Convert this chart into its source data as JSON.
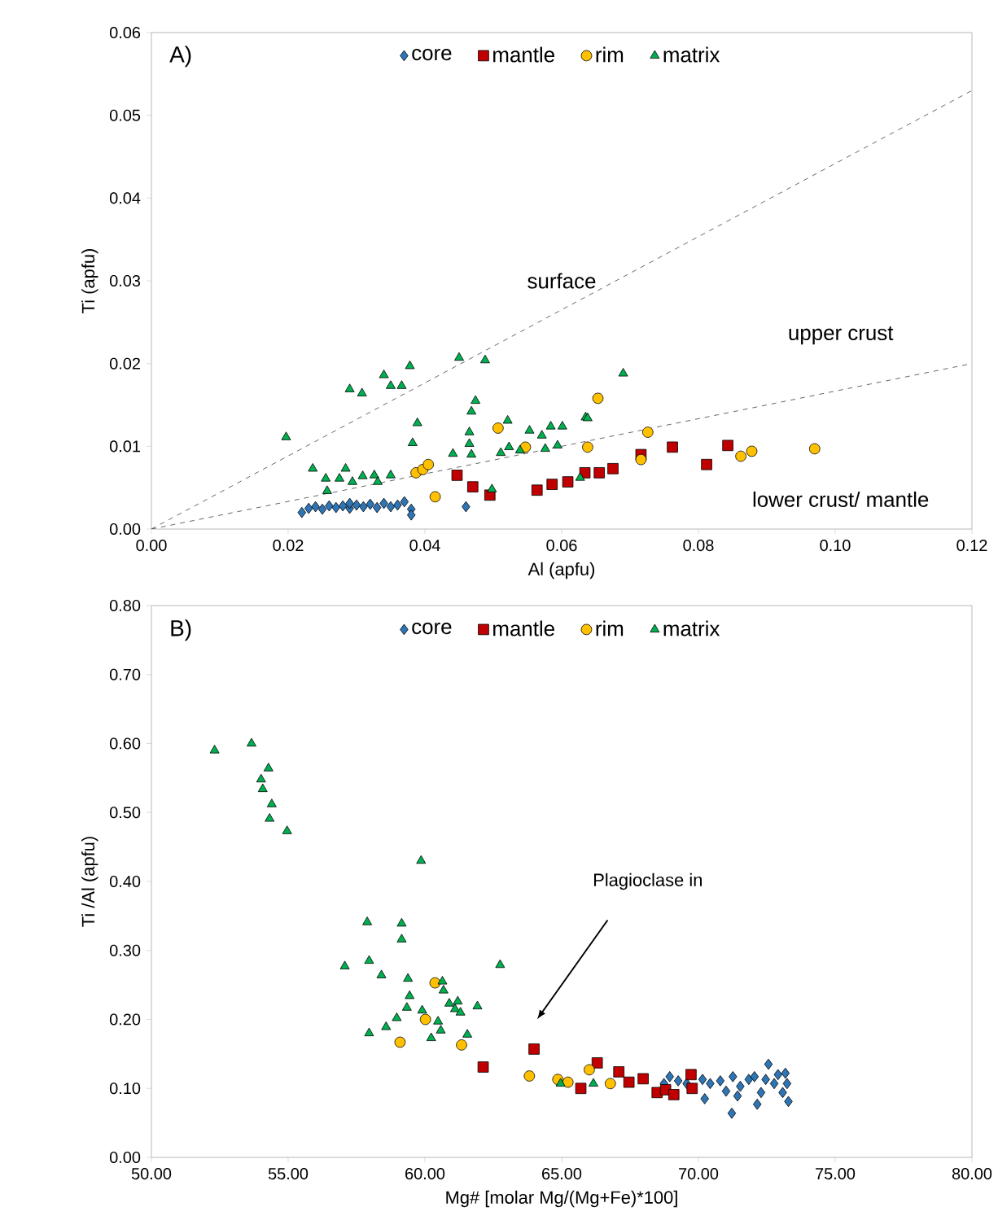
{
  "chart_data": [
    {
      "type": "scatter",
      "title": "A)",
      "xlabel": "Al (apfu)",
      "ylabel": "Ti (apfu)",
      "legend": "top",
      "xlim": [
        0,
        0.12
      ],
      "ylim": [
        0,
        0.06
      ],
      "xticks": [
        {
          "value": 0,
          "label": "0.00"
        },
        {
          "value": 0.02,
          "label": "0.02"
        },
        {
          "value": 0.04,
          "label": "0.04"
        },
        {
          "value": 0.06,
          "label": "0.06"
        },
        {
          "value": 0.08,
          "label": "0.08"
        },
        {
          "value": 0.1,
          "label": "0.10"
        },
        {
          "value": 0.12,
          "label": "0.12"
        }
      ],
      "yticks": [
        {
          "value": 0,
          "label": "0.00"
        },
        {
          "value": 0.01,
          "label": "0.01"
        },
        {
          "value": 0.02,
          "label": "0.02"
        },
        {
          "value": 0.03,
          "label": "0.03"
        },
        {
          "value": 0.04,
          "label": "0.04"
        },
        {
          "value": 0.05,
          "label": "0.05"
        },
        {
          "value": 0.06,
          "label": "0.06"
        }
      ],
      "series": [
        {
          "type": "line",
          "color": "#404040",
          "line_style": "dashed",
          "marker": "none",
          "x": [
            0,
            0.12
          ],
          "values": [
            0,
            0.053
          ]
        },
        {
          "type": "line",
          "color": "#404040",
          "line_style": "dashed",
          "marker": "none",
          "x": [
            0,
            0.12
          ],
          "values": [
            0,
            0.02
          ]
        },
        {
          "name": "core",
          "color": "#2e75b6",
          "marker": "diamond",
          "x": [
            0.022,
            0.023,
            0.024,
            0.025,
            0.026,
            0.027,
            0.028,
            0.029,
            0.03,
            0.031,
            0.032,
            0.033,
            0.034,
            0.035,
            0.036,
            0.037,
            0.038,
            0.038,
            0.046,
            0.029
          ],
          "values": [
            0.002,
            0.0025,
            0.0027,
            0.0024,
            0.0028,
            0.0026,
            0.0028,
            0.0025,
            0.0029,
            0.0027,
            0.003,
            0.0026,
            0.0031,
            0.0027,
            0.0029,
            0.0033,
            0.0024,
            0.0017,
            0.0027,
            0.0031
          ]
        },
        {
          "name": "mantle",
          "color": "#c00000",
          "marker": "square",
          "x": [
            0.0447,
            0.047,
            0.0495,
            0.0564,
            0.0586,
            0.0609,
            0.0634,
            0.0655,
            0.0675,
            0.0716,
            0.0762,
            0.0812,
            0.0843
          ],
          "values": [
            0.0065,
            0.0051,
            0.0041,
            0.0047,
            0.0054,
            0.0057,
            0.0068,
            0.0068,
            0.0073,
            0.009,
            0.0099,
            0.0078,
            0.0101
          ]
        },
        {
          "name": "rim",
          "color": "#ffc000",
          "marker": "circle",
          "x": [
            0.0507,
            0.0547,
            0.0638,
            0.0387,
            0.0397,
            0.0405,
            0.0415,
            0.0653,
            0.0726,
            0.0716,
            0.0862,
            0.0878,
            0.097
          ],
          "values": [
            0.0122,
            0.0099,
            0.0099,
            0.0068,
            0.0072,
            0.0078,
            0.0039,
            0.0158,
            0.0117,
            0.0084,
            0.0088,
            0.0094,
            0.0097
          ]
        },
        {
          "name": "matrix",
          "color": "#00b050",
          "marker": "triangle",
          "x": [
            0.0197,
            0.0236,
            0.0255,
            0.0257,
            0.0275,
            0.0284,
            0.0294,
            0.0309,
            0.0326,
            0.0331,
            0.035,
            0.029,
            0.0308,
            0.034,
            0.035,
            0.0366,
            0.0378,
            0.0389,
            0.0382,
            0.045,
            0.0488,
            0.0474,
            0.0468,
            0.0465,
            0.0465,
            0.0468,
            0.0441,
            0.0498,
            0.0511,
            0.0521,
            0.0523,
            0.0539,
            0.0553,
            0.0571,
            0.0576,
            0.0584,
            0.0594,
            0.0601,
            0.0627,
            0.0635,
            0.069,
            0.0638
          ],
          "values": [
            0.0111,
            0.0073,
            0.0061,
            0.0046,
            0.0061,
            0.0073,
            0.0057,
            0.0064,
            0.0065,
            0.0057,
            0.0065,
            0.0169,
            0.0164,
            0.0186,
            0.0173,
            0.0173,
            0.0197,
            0.0128,
            0.0104,
            0.0207,
            0.0204,
            0.0155,
            0.0142,
            0.0117,
            0.0103,
            0.009,
            0.0091,
            0.0048,
            0.0092,
            0.0131,
            0.0099,
            0.0095,
            0.0119,
            0.0113,
            0.0097,
            0.0124,
            0.0101,
            0.0124,
            0.0062,
            0.0135,
            0.0188,
            0.0134
          ]
        }
      ],
      "annotations": [
        "surface",
        "upper crust",
        "lower crust/ mantle"
      ]
    },
    {
      "type": "scatter",
      "title": "B)",
      "xlabel": "Mg# [molar Mg/(Mg+Fe)*100]",
      "ylabel": "Ti /Al (apfu)",
      "legend": "top",
      "xlim": [
        50,
        80
      ],
      "ylim": [
        0,
        0.8
      ],
      "xticks": [
        {
          "value": 50,
          "label": "50.00"
        },
        {
          "value": 55,
          "label": "55.00"
        },
        {
          "value": 60,
          "label": "60.00"
        },
        {
          "value": 65,
          "label": "65.00"
        },
        {
          "value": 70,
          "label": "70.00"
        },
        {
          "value": 75,
          "label": "75.00"
        },
        {
          "value": 80,
          "label": "80.00"
        }
      ],
      "yticks": [
        {
          "value": 0,
          "label": "0.00"
        },
        {
          "value": 0.1,
          "label": "0.10"
        },
        {
          "value": 0.2,
          "label": "0.20"
        },
        {
          "value": 0.3,
          "label": "0.30"
        },
        {
          "value": 0.4,
          "label": "0.40"
        },
        {
          "value": 0.5,
          "label": "0.50"
        },
        {
          "value": 0.6,
          "label": "0.60"
        },
        {
          "value": 0.7,
          "label": "0.70"
        },
        {
          "value": 0.8,
          "label": "0.80"
        }
      ],
      "series": [
        {
          "name": "core",
          "color": "#2e75b6",
          "marker": "diamond",
          "x": [
            68.95,
            69.26,
            69.57,
            70.15,
            70.23,
            70.43,
            70.8,
            71.01,
            71.22,
            71.26,
            71.53,
            71.84,
            72.05,
            72.15,
            72.29,
            72.46,
            72.56,
            72.77,
            72.91,
            73.08,
            73.24,
            73.29,
            73.18,
            68.74,
            71.43
          ],
          "values": [
            0.117,
            0.111,
            0.107,
            0.113,
            0.085,
            0.107,
            0.111,
            0.096,
            0.064,
            0.117,
            0.103,
            0.113,
            0.117,
            0.077,
            0.094,
            0.113,
            0.135,
            0.107,
            0.12,
            0.094,
            0.107,
            0.081,
            0.122,
            0.107,
            0.089
          ]
        },
        {
          "name": "mantle",
          "color": "#c00000",
          "marker": "square",
          "x": [
            62.13,
            63.99,
            65.7,
            66.3,
            67.09,
            67.46,
            67.98,
            68.49,
            68.8,
            69.1,
            69.73,
            69.77
          ],
          "values": [
            0.131,
            0.157,
            0.1,
            0.137,
            0.124,
            0.109,
            0.114,
            0.094,
            0.098,
            0.091,
            0.12,
            0.1
          ]
        },
        {
          "name": "rim",
          "color": "#ffc000",
          "marker": "circle",
          "x": [
            60.37,
            60.02,
            59.09,
            61.34,
            63.82,
            64.86,
            65.23,
            66.01,
            66.78
          ],
          "values": [
            0.253,
            0.2,
            0.167,
            0.163,
            0.118,
            0.113,
            0.109,
            0.127,
            0.107
          ]
        },
        {
          "name": "matrix",
          "color": "#00b050",
          "marker": "triangle",
          "x": [
            52.31,
            53.66,
            54.28,
            54.01,
            54.07,
            54.4,
            54.32,
            54.96,
            59.86,
            57.89,
            59.15,
            59.15,
            57.07,
            57.96,
            58.41,
            62.75,
            59.38,
            59.44,
            59.34,
            58.97,
            58.58,
            57.96,
            59.9,
            60.23,
            60.58,
            60.48,
            60.64,
            60.68,
            60.89,
            61.2,
            61.1,
            61.3,
            61.92,
            61.55,
            64.96,
            66.16
          ],
          "values": [
            0.59,
            0.6,
            0.564,
            0.548,
            0.534,
            0.512,
            0.491,
            0.473,
            0.43,
            0.341,
            0.339,
            0.316,
            0.277,
            0.285,
            0.264,
            0.279,
            0.259,
            0.234,
            0.217,
            0.202,
            0.189,
            0.18,
            0.213,
            0.173,
            0.184,
            0.197,
            0.255,
            0.242,
            0.223,
            0.226,
            0.215,
            0.21,
            0.219,
            0.178,
            0.107,
            0.107
          ]
        }
      ],
      "annotations": [
        "Plagioclase in"
      ]
    }
  ]
}
